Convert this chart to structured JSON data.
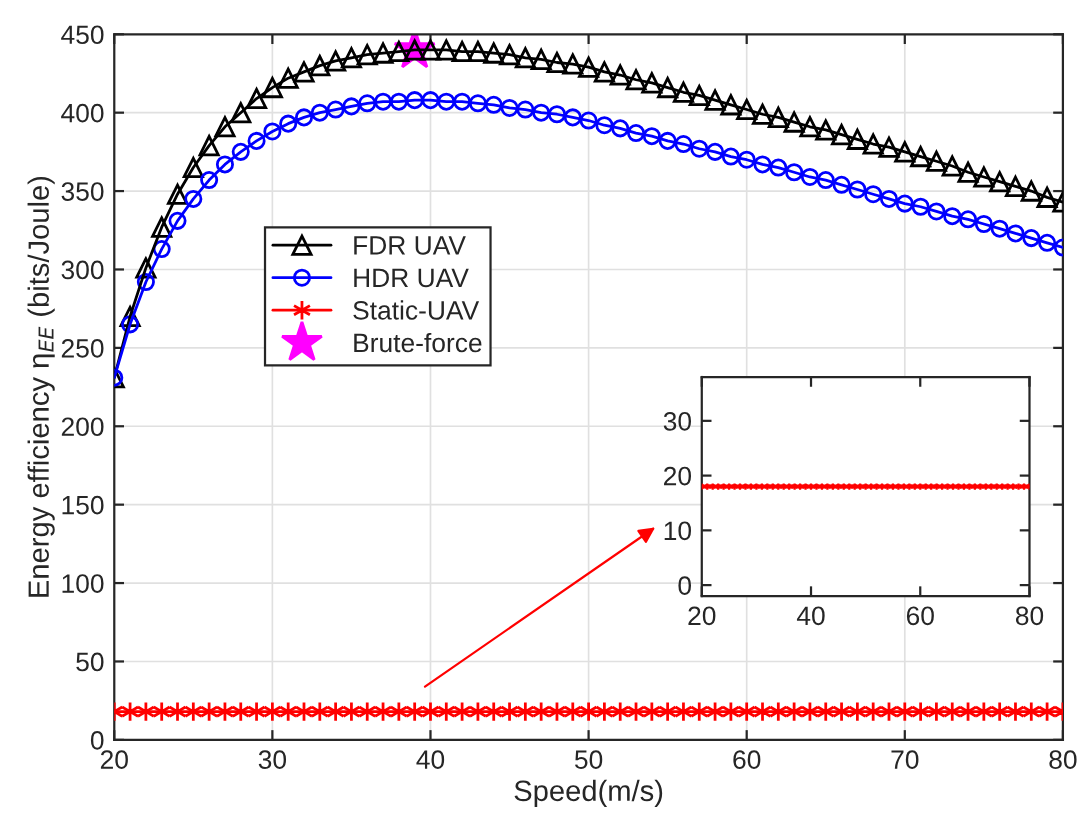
{
  "chart_data": [
    {
      "type": "line",
      "xlabel": "Speed(m/s)",
      "ylabel": "Energy efficiency η$_{EE}$ (bits/Joule)",
      "x": [
        20,
        21,
        22,
        23,
        24,
        25,
        26,
        27,
        28,
        29,
        30,
        31,
        32,
        33,
        34,
        35,
        36,
        37,
        38,
        39,
        40,
        41,
        42,
        43,
        44,
        45,
        46,
        47,
        48,
        49,
        50,
        51,
        52,
        53,
        54,
        55,
        56,
        57,
        58,
        59,
        60,
        61,
        62,
        63,
        64,
        65,
        66,
        67,
        68,
        69,
        70,
        71,
        72,
        73,
        74,
        75,
        76,
        77,
        78,
        79,
        80
      ],
      "series": [
        {
          "name": "FDR UAV",
          "color": "#000000",
          "marker": "triangle",
          "values": [
            231,
            270,
            301,
            327,
            348,
            365,
            379,
            391,
            400,
            409,
            416,
            422,
            426,
            430,
            433,
            435,
            437,
            438,
            439,
            440,
            440,
            440,
            439,
            439,
            438,
            437,
            435,
            434,
            432,
            431,
            429,
            426,
            424,
            421,
            419,
            416,
            413,
            411,
            408,
            405,
            402,
            399,
            397,
            394,
            391,
            389,
            386,
            383,
            380,
            378,
            375,
            372,
            369,
            366,
            362,
            359,
            356,
            353,
            350,
            346,
            343
          ]
        },
        {
          "name": "HDR UAV",
          "color": "#0000ff",
          "marker": "circle",
          "values": [
            231,
            265,
            292,
            313,
            331,
            345,
            357,
            367,
            375,
            382,
            388,
            393,
            397,
            400,
            402,
            404,
            406,
            407,
            407,
            408,
            408,
            407,
            407,
            406,
            405,
            403,
            402,
            400,
            399,
            397,
            395,
            392,
            390,
            387,
            385,
            382,
            380,
            377,
            375,
            372,
            370,
            367,
            365,
            362,
            359,
            357,
            354,
            351,
            348,
            345,
            342,
            340,
            337,
            334,
            332,
            329,
            326,
            323,
            320,
            317,
            314
          ]
        },
        {
          "name": "Static-UAV",
          "color": "#ff0000",
          "marker": "cross",
          "values": [
            18,
            18,
            18,
            18,
            18,
            18,
            18,
            18,
            18,
            18,
            18,
            18,
            18,
            18,
            18,
            18,
            18,
            18,
            18,
            18,
            18,
            18,
            18,
            18,
            18,
            18,
            18,
            18,
            18,
            18,
            18,
            18,
            18,
            18,
            18,
            18,
            18,
            18,
            18,
            18,
            18,
            18,
            18,
            18,
            18,
            18,
            18,
            18,
            18,
            18,
            18,
            18,
            18,
            18,
            18,
            18,
            18,
            18,
            18,
            18,
            18
          ]
        },
        {
          "name": "Brute-force",
          "type": "scatter",
          "color": "#ff00ff",
          "marker": "star",
          "x": [
            39
          ],
          "values": [
            440
          ]
        }
      ],
      "xlim": [
        20,
        80
      ],
      "xticks": [
        20,
        30,
        40,
        50,
        60,
        70,
        80
      ],
      "ylim": [
        0,
        450
      ],
      "yticks": [
        0,
        50,
        100,
        150,
        200,
        250,
        300,
        350,
        400,
        450
      ],
      "grid": true,
      "legend": "left"
    },
    {
      "type": "line",
      "x": [
        20,
        21,
        22,
        23,
        24,
        25,
        26,
        27,
        28,
        29,
        30,
        31,
        32,
        33,
        34,
        35,
        36,
        37,
        38,
        39,
        40,
        41,
        42,
        43,
        44,
        45,
        46,
        47,
        48,
        49,
        50,
        51,
        52,
        53,
        54,
        55,
        56,
        57,
        58,
        59,
        60,
        61,
        62,
        63,
        64,
        65,
        66,
        67,
        68,
        69,
        70,
        71,
        72,
        73,
        74,
        75,
        76,
        77,
        78,
        79,
        80
      ],
      "series": [
        {
          "color": "#ff0000",
          "marker": "cross",
          "values": [
            18,
            18,
            18,
            18,
            18,
            18,
            18,
            18,
            18,
            18,
            18,
            18,
            18,
            18,
            18,
            18,
            18,
            18,
            18,
            18,
            18,
            18,
            18,
            18,
            18,
            18,
            18,
            18,
            18,
            18,
            18,
            18,
            18,
            18,
            18,
            18,
            18,
            18,
            18,
            18,
            18,
            18,
            18,
            18,
            18,
            18,
            18,
            18,
            18,
            18,
            18,
            18,
            18,
            18,
            18,
            18,
            18,
            18,
            18,
            18,
            18
          ]
        }
      ],
      "xlim": [
        20,
        80
      ],
      "xticks": [
        20,
        40,
        60,
        80
      ],
      "ylim": [
        -2,
        38
      ],
      "yticks": [
        0,
        10,
        20,
        30
      ],
      "grid": false
    }
  ]
}
